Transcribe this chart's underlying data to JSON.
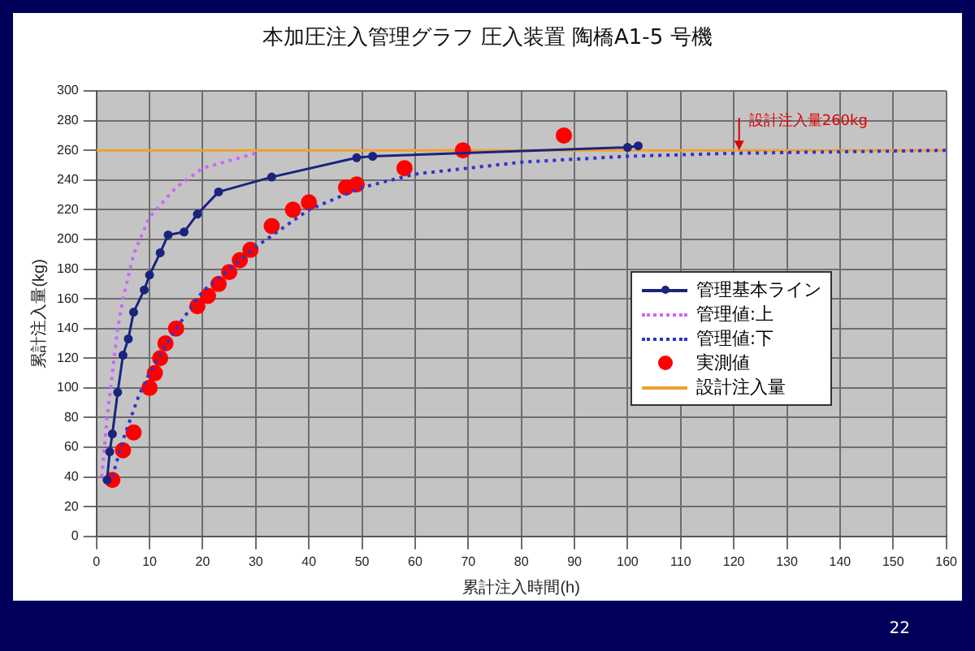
{
  "chart_data": {
    "type": "line",
    "title": "本加圧注入管理グラフ 圧入装置 陶橋A1-5 号機",
    "xlabel": "累計注入時間(h)",
    "ylabel": "累計注入量(kg)",
    "xlim": [
      0,
      160
    ],
    "xticks": [
      0,
      10,
      20,
      30,
      40,
      50,
      60,
      70,
      80,
      90,
      100,
      110,
      120,
      130,
      140,
      150,
      160
    ],
    "ylim": [
      0,
      300
    ],
    "yticks": [
      0,
      20,
      40,
      60,
      80,
      100,
      120,
      140,
      160,
      180,
      200,
      220,
      240,
      260,
      280,
      300
    ],
    "grid": true,
    "legend": "bottom right",
    "annotations": [
      {
        "text": "設計注入量260kg",
        "x": 121,
        "y": 260
      },
      "22"
    ],
    "series": [
      {
        "name": "管理基本ライン",
        "color": "#1a237e",
        "marker": "circle",
        "line_style": "solid",
        "x": [
          2,
          2.5,
          3,
          4,
          5,
          6,
          7,
          9,
          10,
          12,
          13.5,
          16.5,
          19,
          23,
          33,
          49,
          52,
          100,
          102
        ],
        "values": [
          38,
          57,
          69,
          97,
          122,
          133,
          151,
          166,
          176,
          191,
          203,
          205,
          217,
          232,
          242,
          255,
          256,
          262,
          263
        ]
      },
      {
        "name": "管理値:上",
        "color": "#cc66ff",
        "marker": "none",
        "line_style": "dotted",
        "x": [
          1,
          2,
          3,
          4,
          5,
          7,
          10,
          15,
          20,
          30
        ],
        "values": [
          40,
          80,
          110,
          140,
          160,
          190,
          215,
          235,
          248,
          258
        ]
      },
      {
        "name": "管理値:下",
        "color": "#3333cc",
        "marker": "none",
        "line_style": "dotted",
        "x": [
          3,
          5,
          8,
          10,
          15,
          20,
          30,
          40,
          50,
          60,
          80,
          100,
          120,
          160
        ],
        "values": [
          40,
          65,
          95,
          110,
          140,
          165,
          195,
          220,
          235,
          244,
          252,
          256,
          258,
          260
        ]
      },
      {
        "name": "実測値",
        "type": "scatter",
        "color": "#ff0000",
        "marker": "circle",
        "x": [
          3,
          5,
          7,
          10,
          11,
          12,
          13,
          15,
          19,
          21,
          23,
          25,
          27,
          29,
          33,
          37,
          40,
          47,
          49,
          58,
          69,
          88
        ],
        "values": [
          38,
          58,
          70,
          100,
          110,
          120,
          130,
          140,
          155,
          162,
          170,
          178,
          186,
          193,
          209,
          220,
          225,
          235,
          237,
          248,
          260,
          270
        ]
      },
      {
        "name": "設計注入量",
        "color": "#f0a030",
        "marker": "none",
        "line_style": "solid",
        "x": [
          0,
          160
        ],
        "values": [
          260,
          260
        ]
      }
    ]
  }
}
